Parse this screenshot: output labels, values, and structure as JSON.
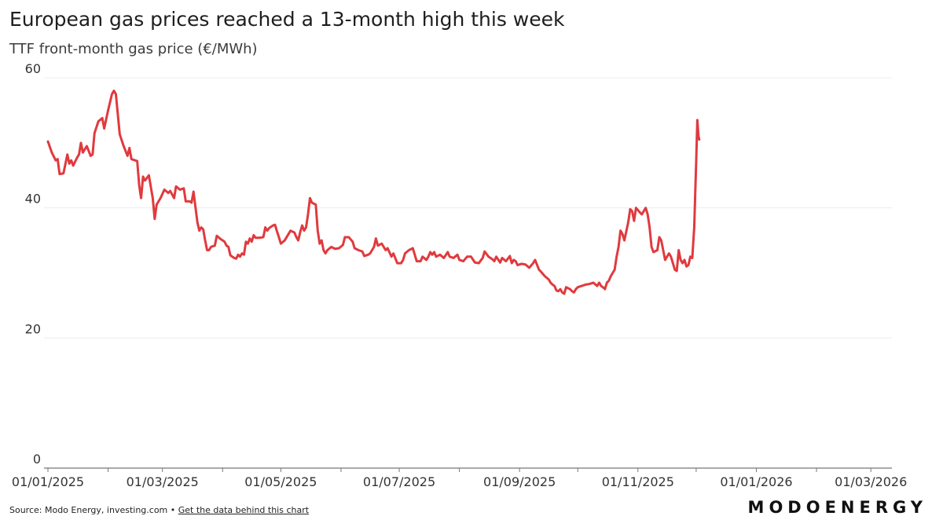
{
  "chart_data": {
    "type": "line",
    "title": "European gas prices reached a 13-month high this week",
    "subtitle": "TTF front-month gas price (€/MWh)",
    "xlabel": "",
    "ylabel": "",
    "ylim": [
      0,
      60
    ],
    "y_ticks": [
      0,
      20,
      40,
      60
    ],
    "x_range_days": [
      0,
      430
    ],
    "x_ticks": [
      {
        "day": 0,
        "label": "01/01/2025"
      },
      {
        "day": 59,
        "label": "01/03/2025"
      },
      {
        "day": 120,
        "label": "01/05/2025"
      },
      {
        "day": 181,
        "label": "01/07/2025"
      },
      {
        "day": 243,
        "label": "01/09/2025"
      },
      {
        "day": 304,
        "label": "01/11/2025"
      },
      {
        "day": 365,
        "label": "01/01/2026"
      },
      {
        "day": 424,
        "label": "01/03/2026"
      }
    ],
    "grid": true,
    "series": [
      {
        "name": "TTF front-month gas price",
        "color": "#e03a3e",
        "points": [
          [
            0,
            50.2
          ],
          [
            2,
            48.5
          ],
          [
            4,
            47.3
          ],
          [
            5,
            47.5
          ],
          [
            6,
            45.2
          ],
          [
            8,
            45.3
          ],
          [
            10,
            48.2
          ],
          [
            11,
            46.8
          ],
          [
            12,
            47.3
          ],
          [
            13,
            46.5
          ],
          [
            15,
            47.7
          ],
          [
            16,
            48.2
          ],
          [
            17,
            50.0
          ],
          [
            18,
            48.5
          ],
          [
            20,
            49.5
          ],
          [
            22,
            48.0
          ],
          [
            23,
            48.2
          ],
          [
            24,
            51.5
          ],
          [
            26,
            53.3
          ],
          [
            28,
            53.8
          ],
          [
            29,
            52.2
          ],
          [
            31,
            55.0
          ],
          [
            33,
            57.5
          ],
          [
            34,
            58.0
          ],
          [
            35,
            57.5
          ],
          [
            37,
            51.3
          ],
          [
            39,
            49.5
          ],
          [
            41,
            48.0
          ],
          [
            42,
            49.2
          ],
          [
            43,
            47.5
          ],
          [
            46,
            47.2
          ],
          [
            47,
            43.5
          ],
          [
            48,
            41.5
          ],
          [
            49,
            44.8
          ],
          [
            50,
            44.2
          ],
          [
            52,
            45.0
          ],
          [
            54,
            41.5
          ],
          [
            55,
            38.3
          ],
          [
            56,
            40.5
          ],
          [
            58,
            41.5
          ],
          [
            60,
            42.8
          ],
          [
            62,
            42.3
          ],
          [
            63,
            42.6
          ],
          [
            65,
            41.5
          ],
          [
            66,
            43.3
          ],
          [
            68,
            42.8
          ],
          [
            70,
            43.0
          ],
          [
            71,
            41.0
          ],
          [
            73,
            41.0
          ],
          [
            74,
            40.8
          ],
          [
            75,
            42.5
          ],
          [
            77,
            37.8
          ],
          [
            78,
            36.5
          ],
          [
            79,
            37.0
          ],
          [
            80,
            36.7
          ],
          [
            81,
            35.0
          ],
          [
            82,
            33.5
          ],
          [
            83,
            33.5
          ],
          [
            84,
            34.0
          ],
          [
            86,
            34.2
          ],
          [
            87,
            35.7
          ],
          [
            89,
            35.2
          ],
          [
            91,
            34.8
          ],
          [
            92,
            34.2
          ],
          [
            93,
            34.0
          ],
          [
            94,
            32.7
          ],
          [
            96,
            32.3
          ],
          [
            97,
            32.2
          ],
          [
            98,
            32.8
          ],
          [
            99,
            32.5
          ],
          [
            100,
            33.0
          ],
          [
            101,
            32.8
          ],
          [
            102,
            34.8
          ],
          [
            103,
            34.5
          ],
          [
            104,
            35.3
          ],
          [
            105,
            34.8
          ],
          [
            106,
            35.8
          ],
          [
            107,
            35.4
          ],
          [
            109,
            35.4
          ],
          [
            111,
            35.5
          ],
          [
            112,
            37.0
          ],
          [
            113,
            36.5
          ],
          [
            114,
            36.9
          ],
          [
            116,
            37.3
          ],
          [
            117,
            37.4
          ],
          [
            118,
            36.4
          ],
          [
            119,
            35.5
          ],
          [
            120,
            34.5
          ],
          [
            122,
            35.0
          ],
          [
            124,
            36.0
          ],
          [
            125,
            36.5
          ],
          [
            127,
            36.2
          ],
          [
            128,
            35.5
          ],
          [
            129,
            35.0
          ],
          [
            130,
            36.3
          ],
          [
            131,
            37.3
          ],
          [
            132,
            36.5
          ],
          [
            133,
            37.0
          ],
          [
            134,
            39.0
          ],
          [
            135,
            41.5
          ],
          [
            136,
            40.8
          ],
          [
            138,
            40.5
          ],
          [
            139,
            36.5
          ],
          [
            140,
            34.5
          ],
          [
            141,
            35.0
          ],
          [
            142,
            33.5
          ],
          [
            143,
            33.0
          ],
          [
            144,
            33.5
          ],
          [
            146,
            34.0
          ],
          [
            148,
            33.7
          ],
          [
            150,
            33.8
          ],
          [
            152,
            34.3
          ],
          [
            153,
            35.5
          ],
          [
            155,
            35.5
          ],
          [
            157,
            34.8
          ],
          [
            158,
            33.8
          ],
          [
            160,
            33.5
          ],
          [
            162,
            33.3
          ],
          [
            163,
            32.6
          ],
          [
            165,
            32.8
          ],
          [
            166,
            33.0
          ],
          [
            168,
            34.0
          ],
          [
            169,
            35.3
          ],
          [
            170,
            34.2
          ],
          [
            172,
            34.5
          ],
          [
            174,
            33.5
          ],
          [
            175,
            33.8
          ],
          [
            177,
            32.5
          ],
          [
            178,
            33.0
          ],
          [
            180,
            31.5
          ],
          [
            182,
            31.5
          ],
          [
            183,
            32.0
          ],
          [
            184,
            33.0
          ],
          [
            186,
            33.5
          ],
          [
            188,
            33.8
          ],
          [
            189,
            32.8
          ],
          [
            190,
            31.8
          ],
          [
            192,
            31.8
          ],
          [
            193,
            32.5
          ],
          [
            195,
            32.0
          ],
          [
            196,
            32.5
          ],
          [
            197,
            33.2
          ],
          [
            198,
            32.8
          ],
          [
            199,
            33.2
          ],
          [
            200,
            32.5
          ],
          [
            202,
            32.8
          ],
          [
            204,
            32.3
          ],
          [
            206,
            33.2
          ],
          [
            207,
            32.5
          ],
          [
            209,
            32.3
          ],
          [
            211,
            32.8
          ],
          [
            212,
            32.0
          ],
          [
            214,
            31.8
          ],
          [
            216,
            32.5
          ],
          [
            218,
            32.5
          ],
          [
            220,
            31.6
          ],
          [
            222,
            31.5
          ],
          [
            224,
            32.3
          ],
          [
            225,
            33.3
          ],
          [
            227,
            32.5
          ],
          [
            229,
            32.1
          ],
          [
            230,
            31.8
          ],
          [
            231,
            32.5
          ],
          [
            233,
            31.6
          ],
          [
            234,
            32.3
          ],
          [
            236,
            31.8
          ],
          [
            238,
            32.6
          ],
          [
            239,
            31.5
          ],
          [
            240,
            32.0
          ],
          [
            241,
            31.8
          ],
          [
            242,
            31.2
          ],
          [
            244,
            31.4
          ],
          [
            246,
            31.3
          ],
          [
            248,
            30.8
          ],
          [
            250,
            31.5
          ],
          [
            251,
            32.0
          ],
          [
            253,
            30.5
          ],
          [
            254,
            30.2
          ],
          [
            256,
            29.5
          ],
          [
            258,
            29.0
          ],
          [
            259,
            28.5
          ],
          [
            260,
            28.2
          ],
          [
            261,
            28.0
          ],
          [
            262,
            27.3
          ],
          [
            263,
            27.2
          ],
          [
            264,
            27.5
          ],
          [
            265,
            27.0
          ],
          [
            266,
            26.8
          ],
          [
            267,
            27.8
          ],
          [
            269,
            27.5
          ],
          [
            270,
            27.2
          ],
          [
            271,
            27.0
          ],
          [
            272,
            27.5
          ],
          [
            273,
            27.8
          ],
          [
            275,
            28.0
          ],
          [
            277,
            28.2
          ],
          [
            279,
            28.3
          ],
          [
            281,
            28.5
          ],
          [
            283,
            28.0
          ],
          [
            284,
            28.5
          ],
          [
            285,
            28.0
          ],
          [
            286,
            27.8
          ],
          [
            287,
            27.5
          ],
          [
            288,
            28.5
          ],
          [
            289,
            28.8
          ],
          [
            290,
            29.5
          ],
          [
            291,
            30.0
          ],
          [
            292,
            30.5
          ],
          [
            293,
            32.5
          ],
          [
            294,
            34.0
          ],
          [
            295,
            36.5
          ],
          [
            296,
            36.0
          ],
          [
            297,
            35.0
          ],
          [
            299,
            37.8
          ],
          [
            300,
            39.8
          ],
          [
            301,
            39.5
          ],
          [
            302,
            38.0
          ],
          [
            303,
            40.0
          ],
          [
            305,
            39.3
          ],
          [
            306,
            39.0
          ],
          [
            307,
            39.5
          ],
          [
            308,
            40.0
          ],
          [
            309,
            39.0
          ],
          [
            310,
            37.0
          ],
          [
            311,
            34.0
          ],
          [
            312,
            33.2
          ],
          [
            314,
            33.5
          ],
          [
            315,
            35.5
          ],
          [
            316,
            35.0
          ],
          [
            317,
            33.5
          ],
          [
            318,
            32.0
          ],
          [
            319,
            32.5
          ],
          [
            320,
            33.0
          ],
          [
            321,
            32.5
          ],
          [
            322,
            31.5
          ],
          [
            323,
            30.5
          ],
          [
            324,
            30.3
          ],
          [
            325,
            33.5
          ],
          [
            326,
            32.0
          ],
          [
            327,
            31.5
          ],
          [
            328,
            32.0
          ],
          [
            329,
            31.0
          ],
          [
            330,
            31.2
          ],
          [
            331,
            32.5
          ],
          [
            332,
            32.3
          ],
          [
            333,
            37.0
          ],
          [
            334,
            47.0
          ],
          [
            334.6,
            53.5
          ],
          [
            335.2,
            51.0
          ],
          [
            335.6,
            50.5
          ]
        ]
      }
    ]
  },
  "footer": {
    "source": "Source: Modo Energy, investing.com • ",
    "link_text": "Get the data behind this chart"
  },
  "brand": {
    "name": "MODOENERGY"
  }
}
